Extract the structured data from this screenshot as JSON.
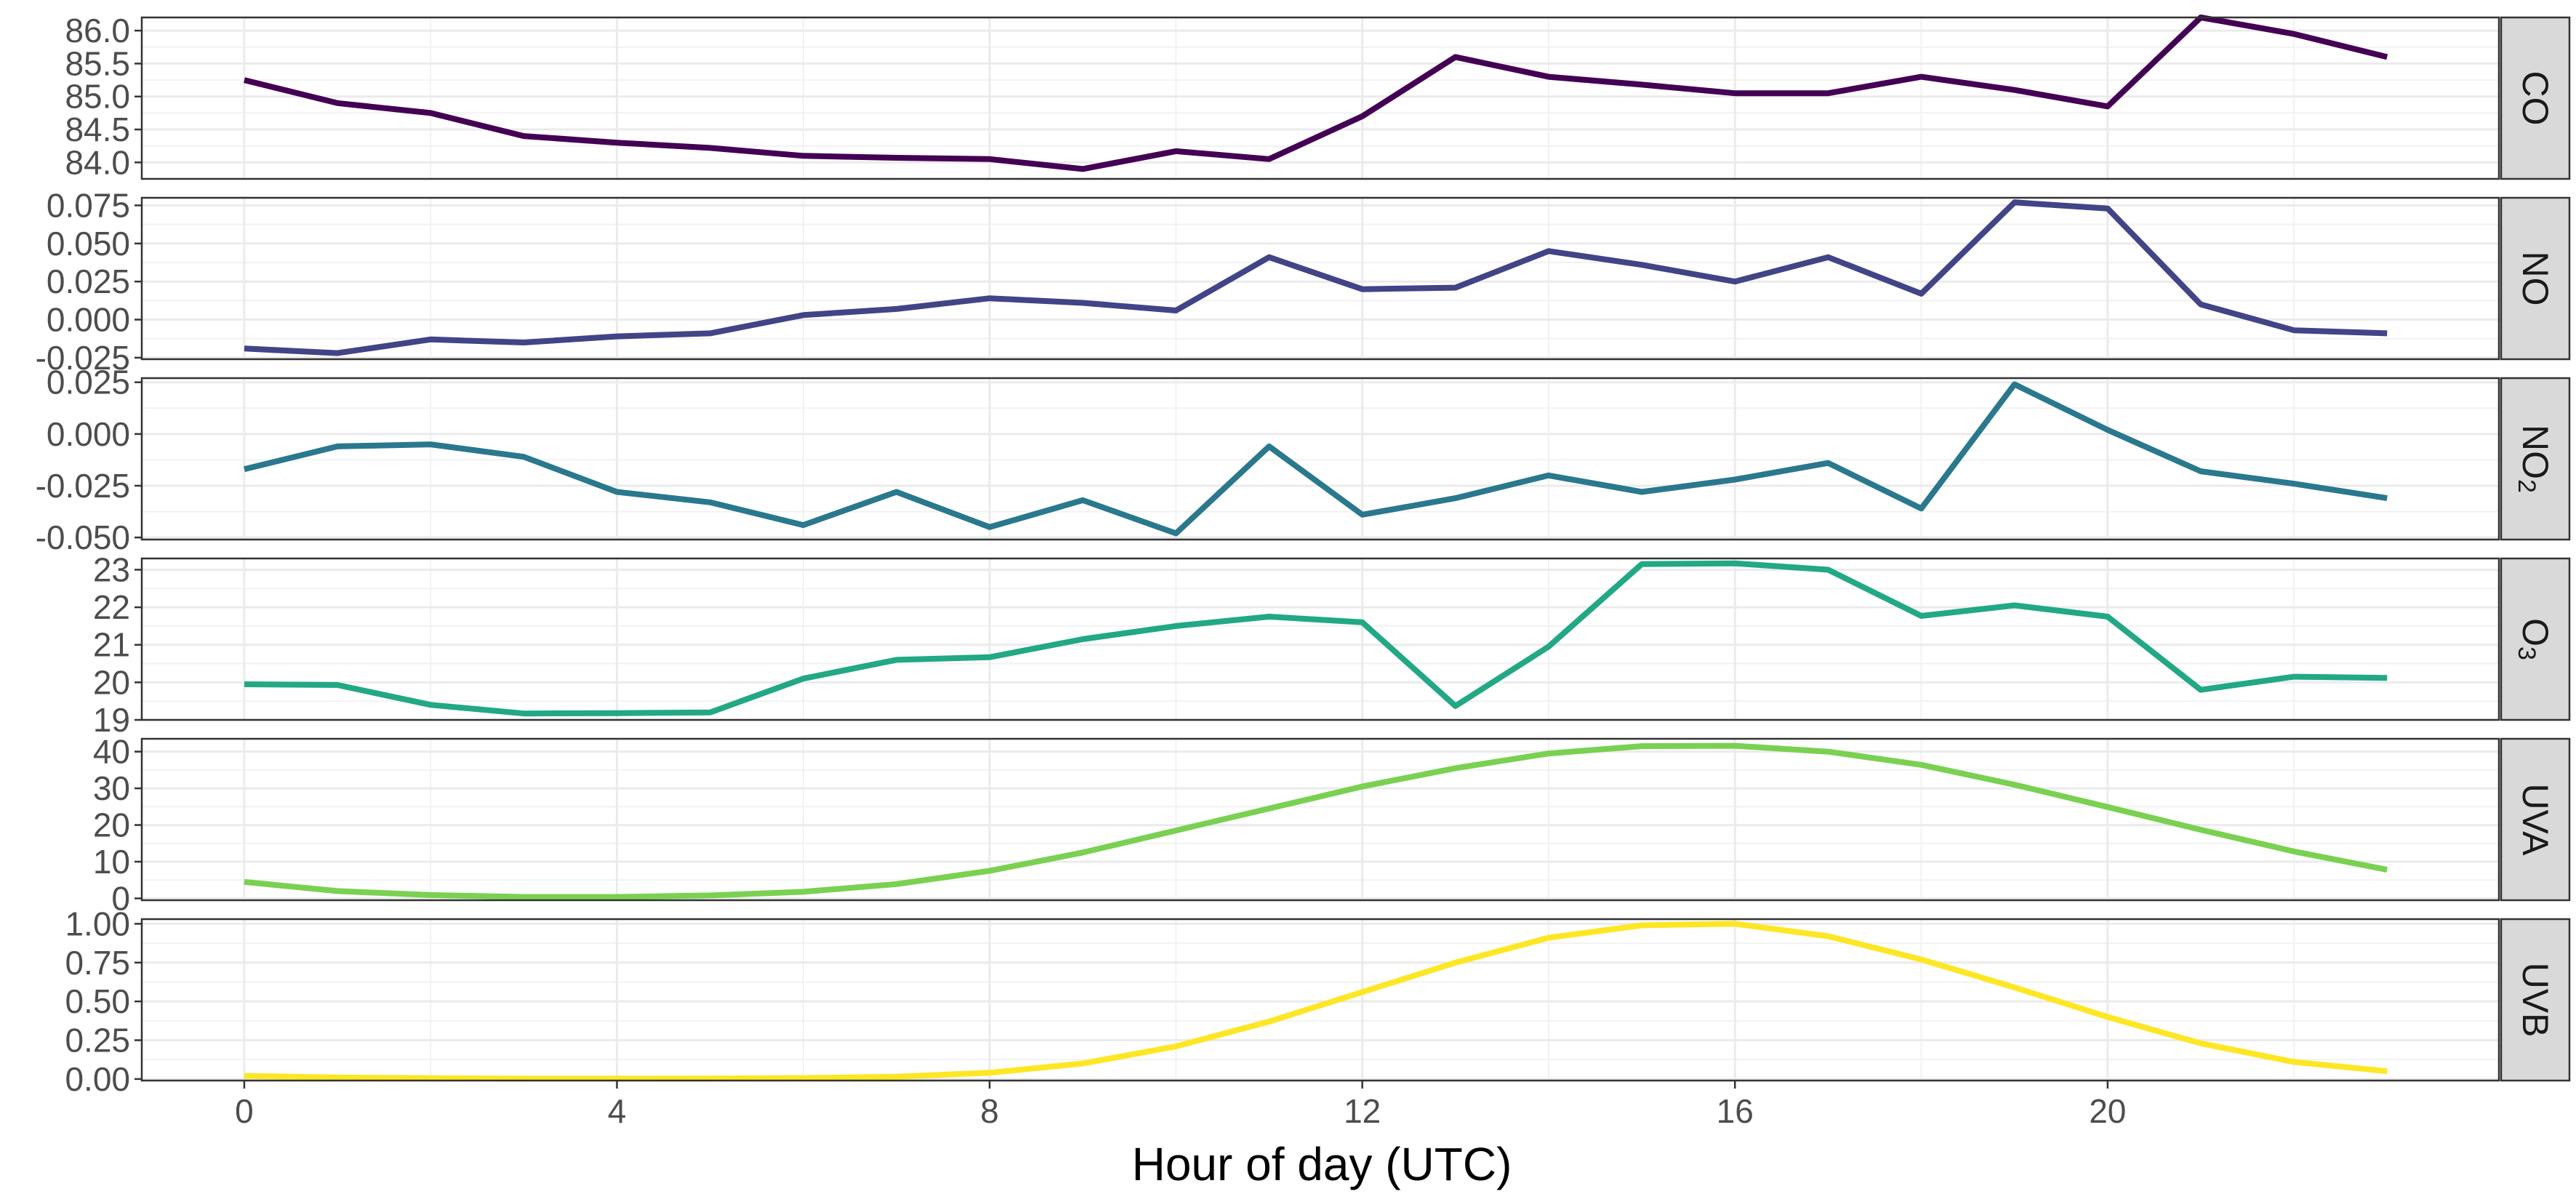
{
  "chart_data": {
    "type": "line",
    "layout": "faceted-vertical",
    "xlabel": "Hour of day (UTC)",
    "x": [
      0,
      1,
      2,
      3,
      4,
      5,
      6,
      7,
      8,
      9,
      10,
      11,
      12,
      13,
      14,
      15,
      16,
      17,
      18,
      19,
      20,
      21,
      22,
      23
    ],
    "x_ticks": [
      0,
      4,
      8,
      12,
      16,
      20
    ],
    "x_tick_labels": [
      "0",
      "4",
      "8",
      "12",
      "16",
      "20"
    ],
    "xlim": [
      -1.1,
      24.2
    ],
    "grid": true,
    "strip_position": "right",
    "panels": [
      {
        "strip": "CO",
        "strip_sub": "",
        "color": "#440154",
        "ylim": [
          83.75,
          86.2
        ],
        "y_ticks": [
          84.0,
          84.5,
          85.0,
          85.5,
          86.0
        ],
        "y_tick_labels": [
          "84.0",
          "84.5",
          "85.0",
          "85.5",
          "86.0"
        ],
        "values": [
          85.25,
          84.9,
          84.75,
          84.4,
          84.3,
          84.22,
          84.1,
          84.07,
          84.05,
          83.9,
          84.17,
          84.05,
          84.7,
          85.6,
          85.3,
          85.18,
          85.05,
          85.05,
          85.3,
          85.1,
          84.85,
          86.2,
          85.95,
          85.6
        ]
      },
      {
        "strip": "NO",
        "strip_sub": "",
        "color": "#414487",
        "ylim": [
          -0.026,
          0.08
        ],
        "y_ticks": [
          -0.025,
          0.0,
          0.025,
          0.05,
          0.075
        ],
        "y_tick_labels": [
          "-0.025",
          "0.000",
          "0.025",
          "0.050",
          "0.075"
        ],
        "values": [
          -0.019,
          -0.022,
          -0.013,
          -0.015,
          -0.011,
          -0.009,
          0.003,
          0.007,
          0.014,
          0.011,
          0.006,
          0.041,
          0.02,
          0.021,
          0.045,
          0.036,
          0.025,
          0.041,
          0.017,
          0.077,
          0.073,
          0.01,
          -0.007,
          -0.009
        ]
      },
      {
        "strip": "NO",
        "strip_sub": "2",
        "color": "#2a788e",
        "ylim": [
          -0.051,
          0.027
        ],
        "y_ticks": [
          -0.05,
          -0.025,
          0.0,
          0.025
        ],
        "y_tick_labels": [
          "-0.050",
          "-0.025",
          "0.000",
          "0.025"
        ],
        "values": [
          -0.017,
          -0.006,
          -0.005,
          -0.011,
          -0.028,
          -0.033,
          -0.044,
          -0.028,
          -0.045,
          -0.032,
          -0.048,
          -0.006,
          -0.039,
          -0.031,
          -0.02,
          -0.028,
          -0.022,
          -0.014,
          -0.036,
          0.024,
          0.002,
          -0.018,
          -0.024,
          -0.031
        ]
      },
      {
        "strip": "O",
        "strip_sub": "3",
        "color": "#22a884",
        "ylim": [
          19.0,
          23.3
        ],
        "y_ticks": [
          19,
          20,
          21,
          22,
          23
        ],
        "y_tick_labels": [
          "19",
          "20",
          "21",
          "22",
          "23"
        ],
        "values": [
          19.95,
          19.93,
          19.4,
          19.17,
          19.18,
          19.2,
          20.1,
          20.6,
          20.67,
          21.15,
          21.5,
          21.75,
          21.6,
          19.37,
          20.95,
          23.15,
          23.17,
          23.0,
          21.77,
          22.05,
          21.75,
          19.8,
          20.15,
          20.12
        ]
      },
      {
        "strip": "UVA",
        "strip_sub": "",
        "color": "#7ad151",
        "ylim": [
          -0.5,
          43.5
        ],
        "y_ticks": [
          0,
          10,
          20,
          30,
          40
        ],
        "y_tick_labels": [
          "0",
          "10",
          "20",
          "30",
          "40"
        ],
        "values": [
          4.5,
          2.0,
          0.9,
          0.4,
          0.4,
          0.8,
          1.8,
          3.9,
          7.5,
          12.5,
          18.5,
          24.5,
          30.5,
          35.5,
          39.5,
          41.5,
          41.6,
          40.0,
          36.4,
          31.0,
          24.9,
          18.7,
          12.8,
          7.8
        ]
      },
      {
        "strip": "UVB",
        "strip_sub": "",
        "color": "#fde725",
        "ylim": [
          -0.01,
          1.03
        ],
        "y_ticks": [
          0.0,
          0.25,
          0.5,
          0.75,
          1.0
        ],
        "y_tick_labels": [
          "0.00",
          "0.25",
          "0.50",
          "0.75",
          "1.00"
        ],
        "values": [
          0.02,
          0.01,
          0.005,
          0.002,
          0.002,
          0.003,
          0.006,
          0.015,
          0.04,
          0.1,
          0.21,
          0.37,
          0.56,
          0.75,
          0.91,
          0.99,
          1.0,
          0.92,
          0.77,
          0.59,
          0.4,
          0.23,
          0.11,
          0.05
        ]
      }
    ]
  }
}
